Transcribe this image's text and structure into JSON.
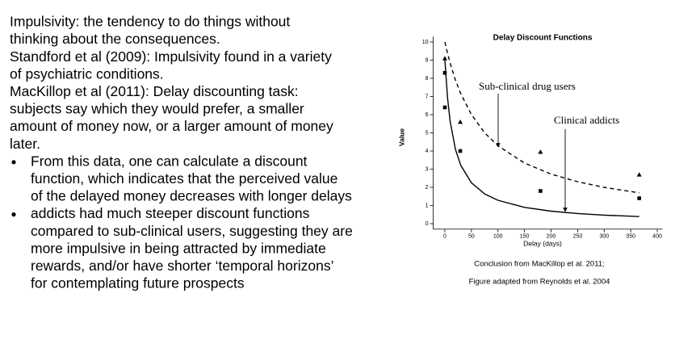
{
  "slide": {
    "lines": [
      "Impulsivity: the tendency  to do things without",
      "thinking about the consequences.",
      "Standford et al (2009): Impulsivity found in a variety",
      "of psychiatric conditions.",
      "MacKillop et al (2011): Delay discounting task:",
      "subjects say which they would prefer, a smaller",
      "amount of money now, or a larger amount of money",
      "later."
    ],
    "bullets": [
      [
        "From this data, one can calculate a discount",
        "function, which indicates that the perceived value",
        "of the delayed money decreases with longer delays"
      ],
      [
        "addicts had much steeper discount functions",
        "compared to sub-clinical users, suggesting they are",
        "more impulsive in being attracted by immediate",
        "rewards, and/or have shorter ‘temporal horizons’",
        "for contemplating future prospects"
      ]
    ],
    "captions": [
      "Conclusion from MacKillop et al. 2011;",
      "Figure adapted from Reynolds et al. 2004"
    ]
  },
  "chart_data": {
    "type": "scatter",
    "title": "Delay Discount Functions",
    "x_label": "Delay (days)",
    "y_label": "Value",
    "annotations": [
      "Sub-clinical drug users",
      "Clinical addicts"
    ],
    "xlim": [
      -22,
      410
    ],
    "ylim": [
      -0.3,
      10.3
    ],
    "xticks": [
      0,
      50,
      100,
      150,
      200,
      250,
      300,
      350,
      400
    ],
    "yticks": [
      0,
      1,
      2,
      3,
      4,
      5,
      6,
      7,
      8,
      9,
      10
    ],
    "color": "#000000",
    "series": [
      {
        "marker": "triangle",
        "x": [
          0,
          29,
          180,
          366
        ],
        "values": [
          9.1,
          5.6,
          3.95,
          2.7
        ]
      },
      {
        "marker": "square",
        "x": [
          0,
          0,
          29,
          180,
          366
        ],
        "values": [
          8.3,
          6.4,
          4.0,
          1.8,
          1.4
        ]
      },
      {
        "style": "dashed",
        "x": [
          0,
          5,
          10,
          20,
          30,
          50,
          75,
          100,
          150,
          200,
          250,
          300,
          366
        ],
        "values": [
          10,
          9.38,
          8.83,
          7.9,
          7.15,
          6.0,
          5.0,
          4.29,
          3.34,
          2.73,
          2.31,
          2.0,
          1.7
        ]
      },
      {
        "style": "solid",
        "x": [
          0,
          5,
          10,
          20,
          30,
          50,
          75,
          100,
          150,
          200,
          250,
          300,
          366
        ],
        "values": [
          9,
          6.92,
          5.63,
          4.09,
          3.21,
          2.25,
          1.64,
          1.29,
          0.9,
          0.69,
          0.56,
          0.47,
          0.39
        ]
      }
    ]
  }
}
